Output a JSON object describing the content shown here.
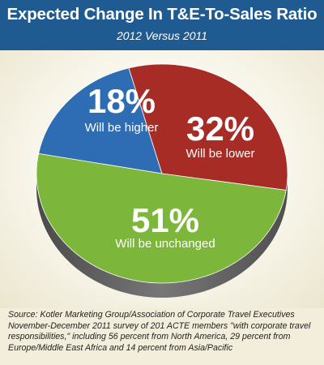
{
  "header": {
    "title": "Expected Change In T&E-To-Sales Ratio",
    "subtitle": "2012 Versus 2011"
  },
  "chart_data": {
    "type": "pie",
    "title": "Expected Change In T&E-To-Sales Ratio",
    "subtitle": "2012 Versus 2011",
    "slices": [
      {
        "percent_label": "18%",
        "text_label": "Will be higher",
        "value": 18,
        "color": "#2e6db4"
      },
      {
        "percent_label": "32%",
        "text_label": "Will be lower",
        "value": 32,
        "color": "#a72c26"
      },
      {
        "percent_label": "51%",
        "text_label": "Will be unchanged",
        "value": 51,
        "color": "#7cb63a"
      }
    ],
    "side_color": "#666666"
  },
  "source": {
    "lines": [
      "Source: Kotler Marketing Group/Association of Corporate Travel Executives",
      "November-December 2011 survey of 201 ACTE members \"with corporate travel",
      "responsibilities,\" including 56 percent from North America, 29 percent from",
      "Europe/Middle East Africa and 14 percent from Asia/Pacific"
    ]
  }
}
